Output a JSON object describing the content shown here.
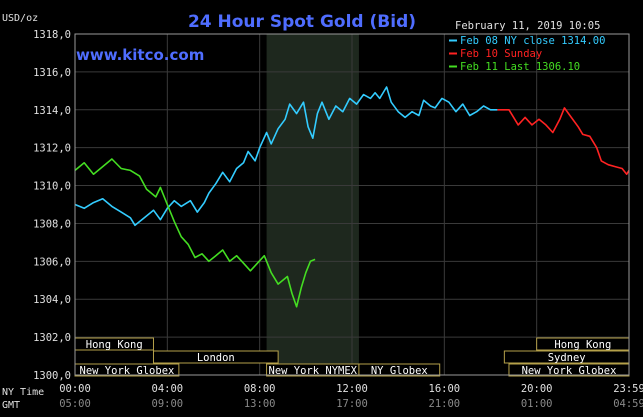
{
  "chart_data": {
    "type": "line",
    "title": "24 Hour Spot Gold (Bid)",
    "watermark": "www.kitco.com",
    "timestamp": "February 11, 2019 10:05",
    "ylabel": "USD/oz",
    "ylim": [
      1300,
      1318
    ],
    "xlim": [
      0,
      24
    ],
    "y_ticks": [
      "1318,0",
      "1316,0",
      "1314,0",
      "1312,0",
      "1310,0",
      "1308,0",
      "1306,0",
      "1304,0",
      "1302,0",
      "1300,0"
    ],
    "x_ticks": [
      {
        "x": 0,
        "ny": "00:00",
        "gmt": "05:00"
      },
      {
        "x": 4,
        "ny": "04:00",
        "gmt": "09:00"
      },
      {
        "x": 8,
        "ny": "08:00",
        "gmt": "13:00"
      },
      {
        "x": 12,
        "ny": "12:00",
        "gmt": "17:00"
      },
      {
        "x": 16,
        "ny": "16:00",
        "gmt": "21:00"
      },
      {
        "x": 20,
        "ny": "20:00",
        "gmt": "01:00"
      },
      {
        "x": 24,
        "ny": "23:59",
        "gmt": "04:59"
      }
    ],
    "row_labels": {
      "ny": "NY Time",
      "gmt": "GMT"
    },
    "grid": true,
    "legend_position": "top-right",
    "shaded_session": [
      8.3,
      12.3
    ],
    "series": [
      {
        "name": "Feb 08 NY close 1314.00",
        "color": "#33ccff",
        "points": [
          [
            0,
            1309.0
          ],
          [
            0.4,
            1308.8
          ],
          [
            0.8,
            1309.1
          ],
          [
            1.2,
            1309.3
          ],
          [
            1.6,
            1308.9
          ],
          [
            2,
            1308.6
          ],
          [
            2.4,
            1308.3
          ],
          [
            2.6,
            1307.9
          ],
          [
            3,
            1308.3
          ],
          [
            3.4,
            1308.7
          ],
          [
            3.7,
            1308.2
          ],
          [
            4,
            1308.8
          ],
          [
            4.3,
            1309.2
          ],
          [
            4.6,
            1308.9
          ],
          [
            5,
            1309.2
          ],
          [
            5.3,
            1308.6
          ],
          [
            5.6,
            1309.1
          ],
          [
            5.8,
            1309.6
          ],
          [
            6.1,
            1310.1
          ],
          [
            6.4,
            1310.7
          ],
          [
            6.7,
            1310.2
          ],
          [
            7,
            1310.9
          ],
          [
            7.3,
            1311.2
          ],
          [
            7.5,
            1311.8
          ],
          [
            7.8,
            1311.3
          ],
          [
            8,
            1312.0
          ],
          [
            8.3,
            1312.8
          ],
          [
            8.5,
            1312.2
          ],
          [
            8.8,
            1313.0
          ],
          [
            9.1,
            1313.5
          ],
          [
            9.3,
            1314.3
          ],
          [
            9.6,
            1313.8
          ],
          [
            9.9,
            1314.4
          ],
          [
            10.1,
            1313.1
          ],
          [
            10.3,
            1312.5
          ],
          [
            10.5,
            1313.8
          ],
          [
            10.7,
            1314.4
          ],
          [
            11,
            1313.5
          ],
          [
            11.3,
            1314.2
          ],
          [
            11.6,
            1313.9
          ],
          [
            11.9,
            1314.6
          ],
          [
            12.2,
            1314.3
          ],
          [
            12.5,
            1314.8
          ],
          [
            12.8,
            1314.6
          ],
          [
            13,
            1314.9
          ],
          [
            13.2,
            1314.6
          ],
          [
            13.5,
            1315.2
          ],
          [
            13.7,
            1314.4
          ],
          [
            14,
            1313.9
          ],
          [
            14.3,
            1313.6
          ],
          [
            14.6,
            1313.9
          ],
          [
            14.9,
            1313.7
          ],
          [
            15.1,
            1314.5
          ],
          [
            15.4,
            1314.2
          ],
          [
            15.6,
            1314.1
          ],
          [
            15.9,
            1314.6
          ],
          [
            16.2,
            1314.4
          ],
          [
            16.5,
            1313.9
          ],
          [
            16.8,
            1314.3
          ],
          [
            17.1,
            1313.7
          ],
          [
            17.4,
            1313.9
          ],
          [
            17.7,
            1314.2
          ],
          [
            18,
            1314.0
          ],
          [
            18.3,
            1314.0
          ]
        ]
      },
      {
        "name": "Feb 10 Sunday",
        "color": "#ff2222",
        "points": [
          [
            18.3,
            1314.0
          ],
          [
            18.8,
            1314.0
          ],
          [
            19.2,
            1313.2
          ],
          [
            19.5,
            1313.6
          ],
          [
            19.8,
            1313.2
          ],
          [
            20.1,
            1313.5
          ],
          [
            20.4,
            1313.2
          ],
          [
            20.7,
            1312.8
          ],
          [
            21,
            1313.5
          ],
          [
            21.2,
            1314.1
          ],
          [
            21.5,
            1313.6
          ],
          [
            21.8,
            1313.1
          ],
          [
            22,
            1312.7
          ],
          [
            22.3,
            1312.6
          ],
          [
            22.6,
            1312.0
          ],
          [
            22.8,
            1311.3
          ],
          [
            23.1,
            1311.1
          ],
          [
            23.4,
            1311.0
          ],
          [
            23.7,
            1310.9
          ],
          [
            23.9,
            1310.6
          ],
          [
            24,
            1310.8
          ]
        ]
      },
      {
        "name": "Feb 11 Last 1306.10",
        "color": "#44dd22",
        "points": [
          [
            0,
            1310.8
          ],
          [
            0.4,
            1311.2
          ],
          [
            0.8,
            1310.6
          ],
          [
            1.2,
            1311.0
          ],
          [
            1.6,
            1311.4
          ],
          [
            2,
            1310.9
          ],
          [
            2.4,
            1310.8
          ],
          [
            2.8,
            1310.5
          ],
          [
            3.1,
            1309.8
          ],
          [
            3.5,
            1309.4
          ],
          [
            3.7,
            1309.9
          ],
          [
            4,
            1309.0
          ],
          [
            4.3,
            1308.1
          ],
          [
            4.6,
            1307.3
          ],
          [
            4.9,
            1306.9
          ],
          [
            5.2,
            1306.2
          ],
          [
            5.5,
            1306.4
          ],
          [
            5.8,
            1306.0
          ],
          [
            6.1,
            1306.3
          ],
          [
            6.4,
            1306.6
          ],
          [
            6.7,
            1306.0
          ],
          [
            7,
            1306.3
          ],
          [
            7.3,
            1305.9
          ],
          [
            7.6,
            1305.5
          ],
          [
            7.9,
            1305.9
          ],
          [
            8.2,
            1306.3
          ],
          [
            8.5,
            1305.4
          ],
          [
            8.8,
            1304.8
          ],
          [
            9.2,
            1305.2
          ],
          [
            9.4,
            1304.3
          ],
          [
            9.6,
            1303.6
          ],
          [
            9.8,
            1304.6
          ],
          [
            10,
            1305.4
          ],
          [
            10.2,
            1306.0
          ],
          [
            10.4,
            1306.1
          ]
        ]
      }
    ],
    "session_bars": [
      {
        "label": "Hong Kong",
        "row": 0,
        "start": 0,
        "end": 3.4
      },
      {
        "label": "Hong Kong",
        "row": 0,
        "start": 20,
        "end": 24
      },
      {
        "label": "London",
        "row": 1,
        "start": 3.4,
        "end": 8.8
      },
      {
        "label": "Sydney",
        "row": 1,
        "start": 18.6,
        "end": 24
      },
      {
        "label": "New York Globex",
        "row": 2,
        "start": 0,
        "end": 4.5
      },
      {
        "label": "New York NYMEX",
        "row": 2,
        "start": 8.3,
        "end": 12.3
      },
      {
        "label": "NY Globex",
        "row": 2,
        "start": 12.3,
        "end": 15.8
      },
      {
        "label": "New York Globex",
        "row": 2,
        "start": 18.8,
        "end": 24
      }
    ],
    "colors": {
      "background": "#000000",
      "grid": "#3a3a3a",
      "shade": "#1e281e",
      "title": "#4f6dff",
      "text": "#e0e0e0",
      "session_border": "#b5a14a",
      "session_text": "#ffffff"
    }
  }
}
